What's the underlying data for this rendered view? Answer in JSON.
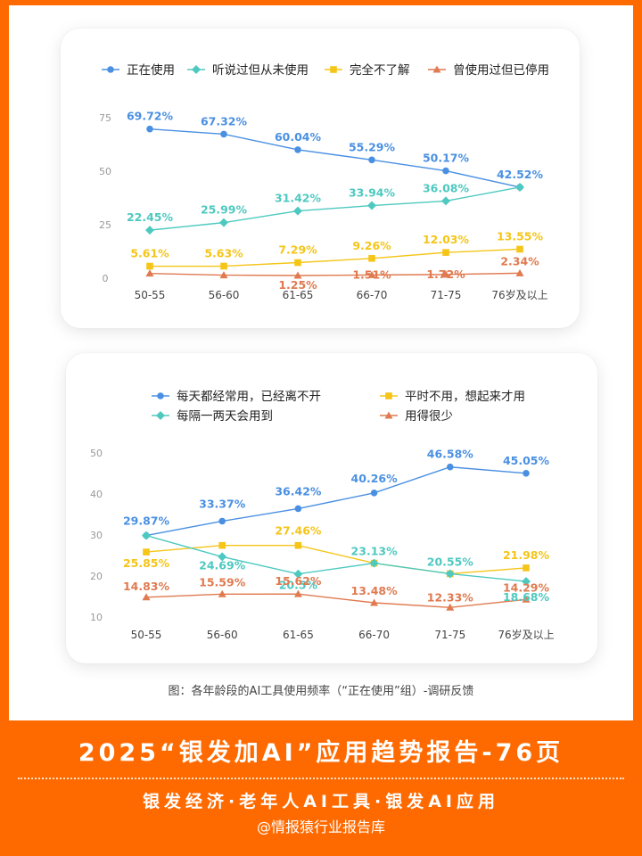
{
  "chart_data": [
    {
      "type": "line",
      "categories": [
        "50-55",
        "56-60",
        "61-65",
        "66-70",
        "71-75",
        "76岁及以上"
      ],
      "ylim": [
        0,
        75
      ],
      "yticks": [
        0,
        25,
        50,
        75
      ],
      "grid": false,
      "legend_position": "top",
      "series": [
        {
          "name": "正在使用",
          "color": "#4a90e2",
          "marker": "circle",
          "values": [
            69.72,
            67.32,
            60.04,
            55.29,
            50.17,
            42.52
          ],
          "labels": [
            "69.72%",
            "67.32%",
            "60.04%",
            "55.29%",
            "50.17%",
            "42.52%"
          ]
        },
        {
          "name": "听说过但从未使用",
          "color": "#4ec9c0",
          "marker": "diamond",
          "values": [
            22.45,
            25.99,
            31.42,
            33.94,
            36.08,
            42.52
          ],
          "labels": [
            "22.45%",
            "25.99%",
            "31.42%",
            "33.94%",
            "36.08%",
            ""
          ]
        },
        {
          "name": "完全不了解",
          "color": "#f5c518",
          "marker": "square",
          "values": [
            5.61,
            5.63,
            7.29,
            9.26,
            12.03,
            13.55
          ],
          "labels": [
            "5.61%",
            "5.63%",
            "7.29%",
            "9.26%",
            "12.03%",
            "13.55%"
          ]
        },
        {
          "name": "曾使用过但已停用",
          "color": "#e07a50",
          "marker": "triangle",
          "values": [
            2.22,
            1.42,
            1.25,
            1.51,
            1.72,
            2.34
          ],
          "labels": [
            "",
            "",
            "1.25%",
            "1.51%",
            "1.72%",
            "2.34%"
          ]
        }
      ]
    },
    {
      "type": "line",
      "categories": [
        "50-55",
        "56-60",
        "61-65",
        "66-70",
        "71-75",
        "76岁及以上"
      ],
      "ylim": [
        10,
        50
      ],
      "yticks": [
        10,
        20,
        30,
        40,
        50
      ],
      "grid": false,
      "legend_position": "top",
      "series": [
        {
          "name": "每天都经常用，已经离不开",
          "color": "#4a90e2",
          "marker": "circle",
          "values": [
            29.87,
            33.37,
            36.42,
            40.26,
            46.58,
            45.05
          ],
          "labels": [
            "29.87%",
            "33.37%",
            "36.42%",
            "40.26%",
            "46.58%",
            "45.05%"
          ]
        },
        {
          "name": "平时不用，想起来才用",
          "color": "#f5c518",
          "marker": "square",
          "values": [
            25.85,
            27.46,
            27.46,
            23.13,
            20.55,
            21.98
          ],
          "labels": [
            "25.85%",
            "",
            "27.46%",
            "",
            "",
            "21.98%"
          ]
        },
        {
          "name": "每隔一两天会用到",
          "color": "#4ec9c0",
          "marker": "diamond",
          "values": [
            29.87,
            24.69,
            20.5,
            23.13,
            20.55,
            18.68
          ],
          "labels": [
            "",
            "24.69%",
            "20.5%",
            "23.13%",
            "20.55%",
            "18.68%"
          ]
        },
        {
          "name": "用得很少",
          "color": "#e07a50",
          "marker": "triangle",
          "values": [
            14.83,
            15.59,
            15.62,
            13.48,
            12.33,
            14.29
          ],
          "labels": [
            "14.83%",
            "15.59%",
            "15.62%",
            "13.48%",
            "12.33%",
            "14.29%"
          ]
        }
      ]
    }
  ],
  "caption": "图：各年龄段的AI工具使用频率（“正在使用”组）-调研反馈",
  "banner": {
    "title": "2025“银发加AI”应用趋势报告-76页",
    "subtitle": "银发经济·老年人AI工具·银发AI应用",
    "source": "@情报猿行业报告库"
  }
}
